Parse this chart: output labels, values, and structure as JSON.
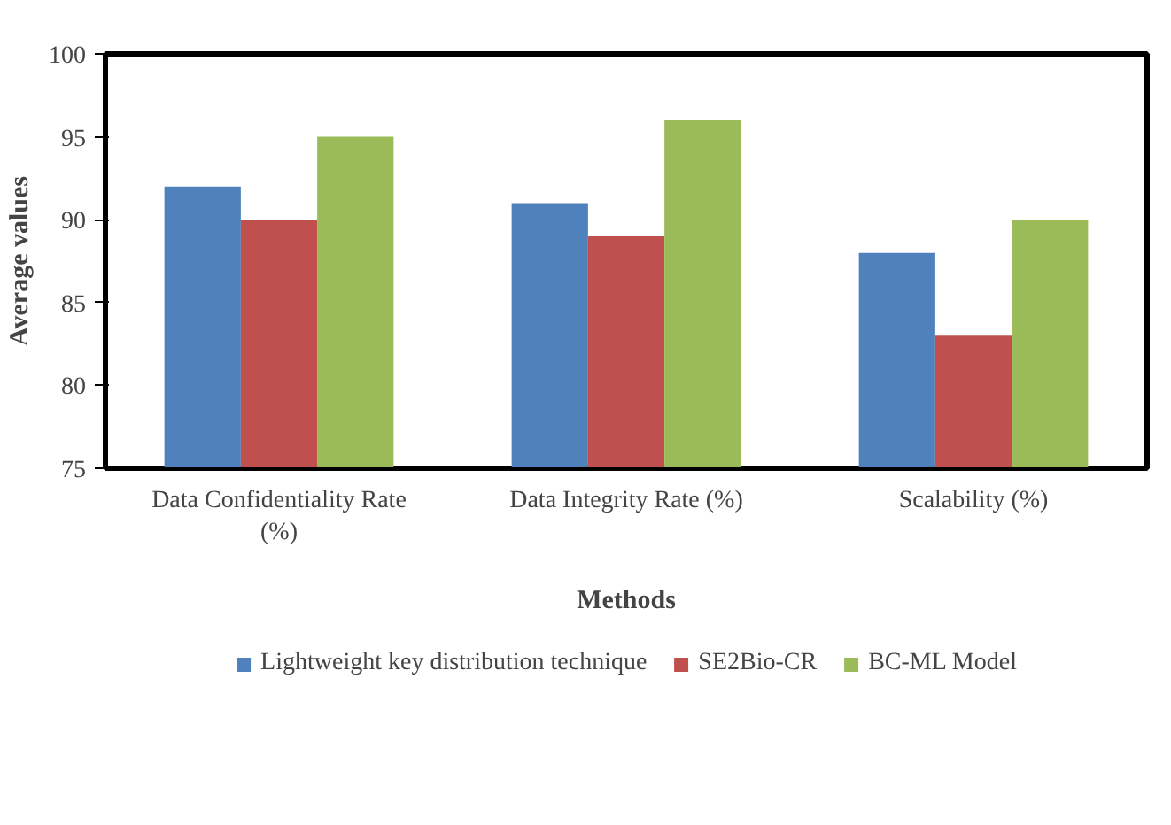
{
  "chart_data": {
    "type": "bar",
    "xlabel": "Methods",
    "ylabel": "Average values",
    "categories": [
      "Data Confidentiality Rate (%)",
      "Data Integrity Rate (%)",
      "Scalability (%)"
    ],
    "series": [
      {
        "name": "Lightweight key distribution technique",
        "color": "#4f81bd",
        "values": [
          92,
          91,
          88
        ]
      },
      {
        "name": "SE2Bio-CR",
        "color": "#c0504d",
        "values": [
          90,
          89,
          83
        ]
      },
      {
        "name": "BC-ML Model",
        "color": "#9bbb59",
        "values": [
          95,
          96,
          90
        ]
      }
    ],
    "ylim": [
      75,
      100
    ],
    "yticks": [
      75,
      80,
      85,
      90,
      95,
      100
    ],
    "grid": false,
    "legend": "bottom"
  }
}
